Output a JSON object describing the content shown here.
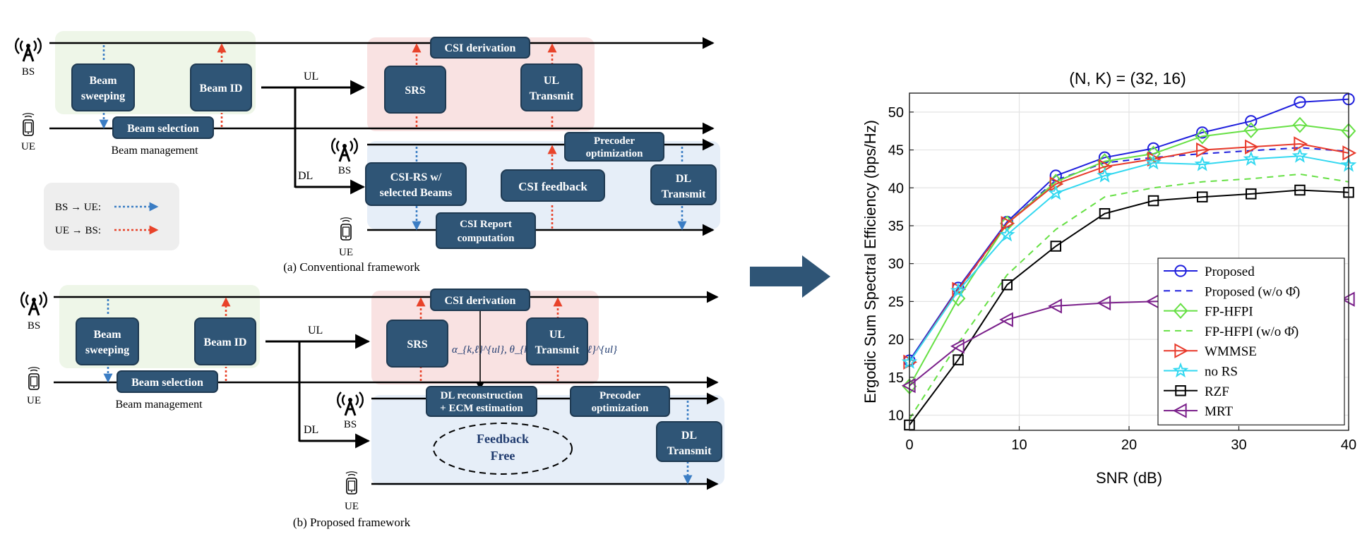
{
  "diagrams": {
    "conventional": {
      "bs": "BS",
      "ue": "UE",
      "beam_sweeping": [
        "Beam",
        "sweeping"
      ],
      "beam_id": "Beam ID",
      "beam_selection": "Beam selection",
      "beam_management": "Beam management",
      "ul": "UL",
      "dl": "DL",
      "csi_derivation": "CSI derivation",
      "srs": "SRS",
      "ul_transmit": [
        "UL",
        "Transmit"
      ],
      "precoder": [
        "Precoder",
        "optimization"
      ],
      "csi_rs": [
        "CSI-RS w/",
        "selected Beams"
      ],
      "csi_feedback": "CSI feedback",
      "dl_transmit": [
        "DL",
        "Transmit"
      ],
      "csi_report": [
        "CSI Report",
        "computation"
      ],
      "caption": "(a) Conventional framework"
    },
    "legend": {
      "bs_ue": "BS → UE:",
      "ue_bs": "UE → BS:"
    },
    "proposed": {
      "bs": "BS",
      "ue": "UE",
      "beam_sweeping": [
        "Beam",
        "sweeping"
      ],
      "beam_id": "Beam ID",
      "beam_selection": "Beam selection",
      "beam_management": "Beam management",
      "ul": "UL",
      "dl": "DL",
      "csi_derivation": "CSI derivation",
      "srs": "SRS",
      "params": "α_{k,ℓ}^{ul}, θ_{k,ℓ}^{ul}, τ_{k,ℓ}^{ul}",
      "ul_transmit": [
        "UL",
        "Transmit"
      ],
      "dl_reconstruction": [
        "DL reconstruction",
        "+ ECM estimation"
      ],
      "precoder": [
        "Precoder",
        "optimization"
      ],
      "feedback_free": [
        "Feedback",
        "Free"
      ],
      "dl_transmit": [
        "DL",
        "Transmit"
      ],
      "caption": "(b) Proposed framework"
    }
  },
  "colors": {
    "box": "#2f5576",
    "box_border": "#1f3a52",
    "green_bg": "#eef6e8",
    "pink_bg": "#f9e2e2",
    "blue_bg": "#e6eef8",
    "legend_bg": "#eeeeee",
    "blue_dot": "#3b7dc4",
    "red_dot": "#e8432a",
    "big_arrow": "#2f5576"
  },
  "chart_data": {
    "type": "line",
    "title": "(N, K) = (32, 16)",
    "xlabel": "SNR (dB)",
    "ylabel": "Ergodic Sum Spectral Efficiency (bps/Hz)",
    "xlim": [
      0,
      40
    ],
    "ylim": [
      8,
      52.5
    ],
    "xticks": [
      0,
      10,
      20,
      30,
      40
    ],
    "yticks": [
      10,
      15,
      20,
      25,
      30,
      35,
      40,
      45,
      50
    ],
    "grid": true,
    "legend_position": "bottom-right",
    "x": [
      0,
      4.44,
      8.89,
      13.33,
      17.78,
      22.22,
      26.67,
      31.11,
      35.56,
      40
    ],
    "series": [
      {
        "name": "Proposed",
        "color": "#1f1fdd",
        "dash": "solid",
        "marker": "circle",
        "values": [
          17.2,
          26.8,
          35.5,
          41.6,
          44.0,
          45.2,
          47.3,
          48.8,
          51.3,
          51.7
        ]
      },
      {
        "name": "Proposed (w/o Φ̂)",
        "color": "#1f1fdd",
        "dash": "dashed",
        "marker": "none",
        "values": [
          17.0,
          26.5,
          35.3,
          41.0,
          43.3,
          44.0,
          44.5,
          44.9,
          45.3,
          44.8
        ]
      },
      {
        "name": "FP-HFPI",
        "color": "#66e044",
        "dash": "solid",
        "marker": "diamond",
        "values": [
          13.8,
          25.4,
          35.3,
          40.8,
          43.5,
          44.5,
          46.8,
          47.6,
          48.3,
          47.5
        ]
      },
      {
        "name": "FP-HFPI (w/o Φ̂)",
        "color": "#66e044",
        "dash": "dashed",
        "marker": "none",
        "values": [
          9.5,
          19.5,
          28.5,
          34.5,
          38.8,
          40.0,
          40.8,
          41.2,
          41.8,
          40.8
        ]
      },
      {
        "name": "WMMSE",
        "color": "#e8392a",
        "dash": "solid",
        "marker": "triangle-right",
        "values": [
          17.0,
          26.6,
          35.3,
          40.5,
          42.8,
          43.8,
          45.0,
          45.4,
          45.8,
          44.6
        ]
      },
      {
        "name": "no RS",
        "color": "#33d8f0",
        "dash": "solid",
        "marker": "star",
        "values": [
          17.0,
          26.4,
          33.8,
          39.3,
          41.6,
          43.3,
          43.1,
          43.8,
          44.2,
          43.0
        ]
      },
      {
        "name": "RZF",
        "color": "#000000",
        "dash": "solid",
        "marker": "square",
        "values": [
          8.7,
          17.3,
          27.2,
          32.3,
          36.6,
          38.3,
          38.8,
          39.2,
          39.7,
          39.4
        ]
      },
      {
        "name": "MRT",
        "color": "#7a1f8a",
        "dash": "solid",
        "marker": "triangle-left",
        "values": [
          13.9,
          19.1,
          22.6,
          24.4,
          24.8,
          25.0,
          25.1,
          25.2,
          25.3,
          25.3
        ]
      }
    ]
  }
}
